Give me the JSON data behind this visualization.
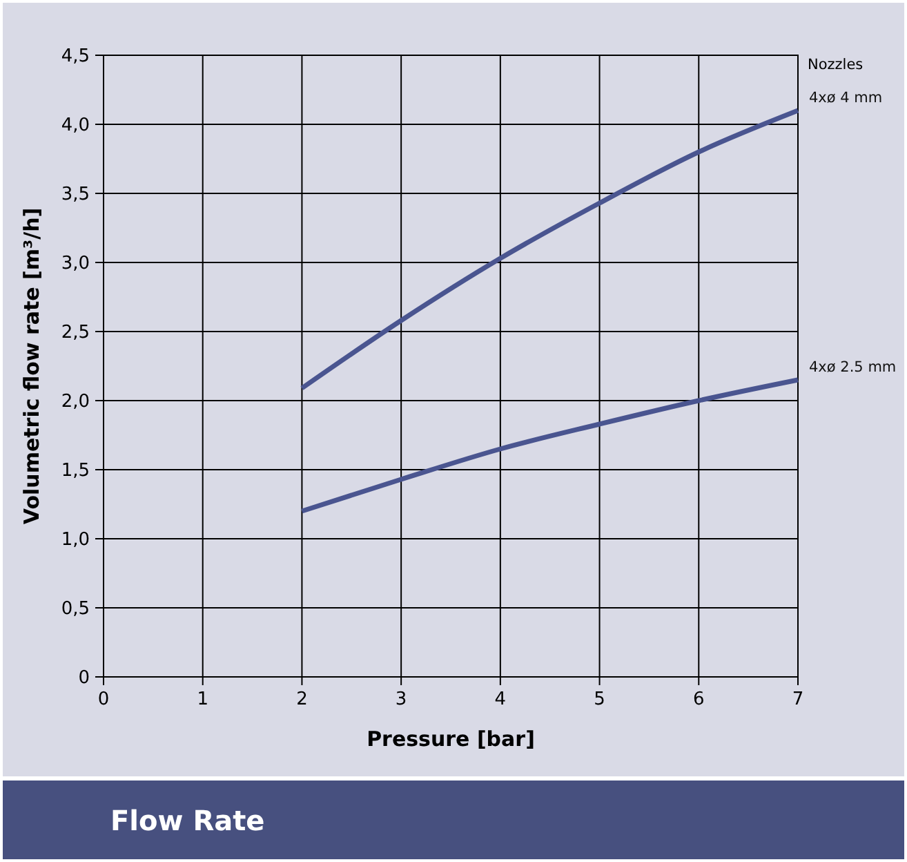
{
  "chart_data": {
    "type": "line",
    "title": "Flow Rate",
    "xlabel": "Pressure [bar]",
    "ylabel": "Volumetric flow rate [m³/h]",
    "legend_title": "Nozzles",
    "x": [
      2,
      3,
      4,
      5,
      6,
      7
    ],
    "series": [
      {
        "name": "4xø 4 mm",
        "color": "#4a5590",
        "values": [
          2.09,
          2.58,
          3.03,
          3.43,
          3.8,
          4.1
        ]
      },
      {
        "name": "4xø 2.5 mm",
        "color": "#4a5590",
        "values": [
          1.2,
          1.43,
          1.65,
          1.83,
          2.0,
          2.15
        ]
      }
    ],
    "xlim": [
      0,
      7
    ],
    "xticks": [
      0,
      1,
      2,
      3,
      4,
      5,
      6,
      7
    ],
    "ylim": [
      0,
      4.5
    ],
    "yticks": [
      0,
      {
        "value": 0.5,
        "label": "0,5"
      },
      {
        "value": 1,
        "label": "1,0"
      },
      {
        "value": 1.5,
        "label": "1,5"
      },
      {
        "value": 2,
        "label": "2,0"
      },
      {
        "value": 2.5,
        "label": "2,5"
      },
      {
        "value": 3,
        "label": "3,0"
      },
      {
        "value": 3.5,
        "label": "3,5"
      },
      {
        "value": 4,
        "label": "4,0"
      },
      {
        "value": 4.5,
        "label": "4,5"
      }
    ],
    "grid": true,
    "line_style": "solid",
    "marker": "none"
  }
}
